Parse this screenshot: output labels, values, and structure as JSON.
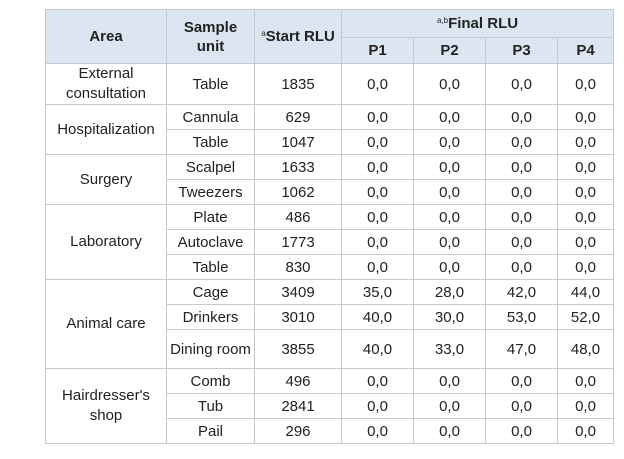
{
  "table": {
    "headers": {
      "area": "Area",
      "sample_unit": "Sample unit",
      "start_rlu_sup": "a",
      "start_rlu": "Start RLU",
      "final_rlu_sup": "a,b",
      "final_rlu": "Final RLU",
      "p1": "P1",
      "p2": "P2",
      "p3": "P3",
      "p4": "P4"
    },
    "areas": {
      "external": "External consultation",
      "hospitalization": "Hospitalization",
      "surgery": "Surgery",
      "laboratory": "Laboratory",
      "animal_care": "Animal care",
      "hairdresser": "Hairdresser's shop"
    },
    "rows": [
      {
        "unit": "Table",
        "start": "1835",
        "p1": "0,0",
        "p2": "0,0",
        "p3": "0,0",
        "p4": "0,0"
      },
      {
        "unit": "Cannula",
        "start": "629",
        "p1": "0,0",
        "p2": "0,0",
        "p3": "0,0",
        "p4": "0,0"
      },
      {
        "unit": "Table",
        "start": "1047",
        "p1": "0,0",
        "p2": "0,0",
        "p3": "0,0",
        "p4": "0,0"
      },
      {
        "unit": "Scalpel",
        "start": "1633",
        "p1": "0,0",
        "p2": "0,0",
        "p3": "0,0",
        "p4": "0,0"
      },
      {
        "unit": "Tweezers",
        "start": "1062",
        "p1": "0,0",
        "p2": "0,0",
        "p3": "0,0",
        "p4": "0,0"
      },
      {
        "unit": "Plate",
        "start": "486",
        "p1": "0,0",
        "p2": "0,0",
        "p3": "0,0",
        "p4": "0,0"
      },
      {
        "unit": "Autoclave",
        "start": "1773",
        "p1": "0,0",
        "p2": "0,0",
        "p3": "0,0",
        "p4": "0,0"
      },
      {
        "unit": "Table",
        "start": "830",
        "p1": "0,0",
        "p2": "0,0",
        "p3": "0,0",
        "p4": "0,0"
      },
      {
        "unit": "Cage",
        "start": "3409",
        "p1": "35,0",
        "p2": "28,0",
        "p3": "42,0",
        "p4": "44,0"
      },
      {
        "unit": "Drinkers",
        "start": "3010",
        "p1": "40,0",
        "p2": "30,0",
        "p3": "53,0",
        "p4": "52,0"
      },
      {
        "unit": "Dining room",
        "start": "3855",
        "p1": "40,0",
        "p2": "33,0",
        "p3": "47,0",
        "p4": "48,0"
      },
      {
        "unit": "Comb",
        "start": "496",
        "p1": "0,0",
        "p2": "0,0",
        "p3": "0,0",
        "p4": "0,0"
      },
      {
        "unit": "Tub",
        "start": "2841",
        "p1": "0,0",
        "p2": "0,0",
        "p3": "0,0",
        "p4": "0,0"
      },
      {
        "unit": "Pail",
        "start": "296",
        "p1": "0,0",
        "p2": "0,0",
        "p3": "0,0",
        "p4": "0,0"
      }
    ]
  }
}
